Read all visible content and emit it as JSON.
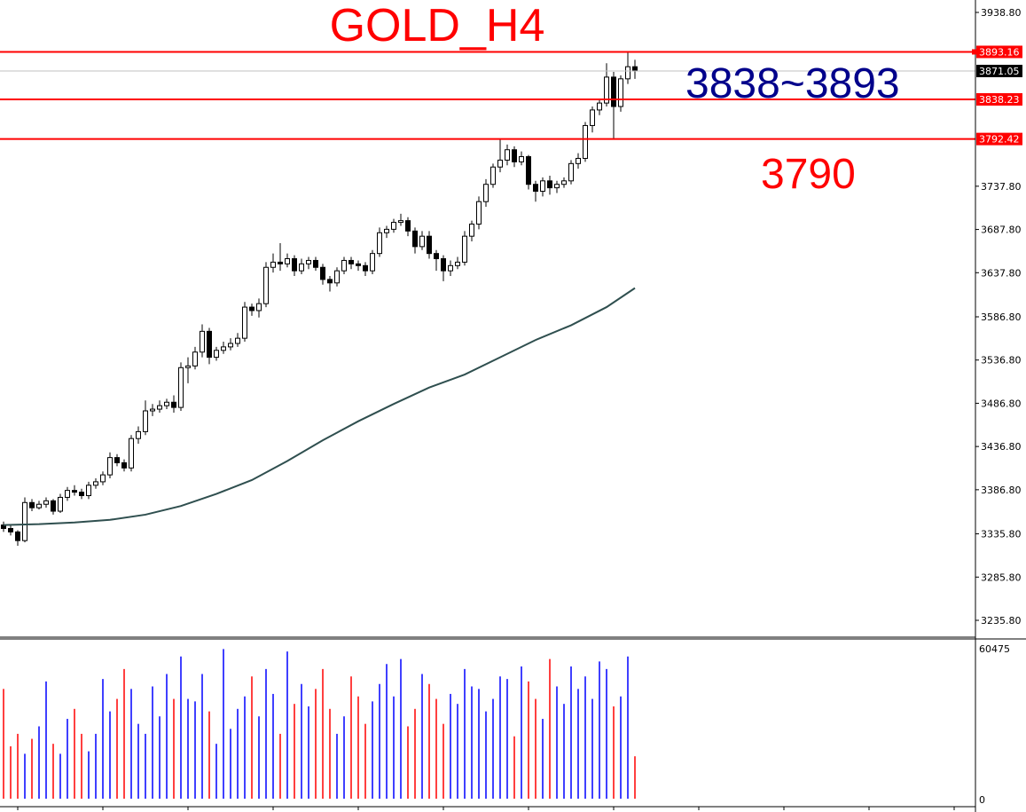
{
  "chart_data": {
    "type": "candlestick",
    "symbol_title": "GOLD_H4",
    "annotations": [
      {
        "text": "3838~3893",
        "color": "#00008B"
      },
      {
        "text": "3790",
        "color": "#FF0000"
      }
    ],
    "ylim": [
      3210,
      3960
    ],
    "price_ticks": [
      "3938.80",
      "3893.16",
      "3838.23",
      "3792.42",
      "3737.80",
      "3687.80",
      "3637.80",
      "3586.80",
      "3536.80",
      "3486.80",
      "3436.80",
      "3386.80",
      "3335.80",
      "3285.80",
      "3235.80"
    ],
    "tick_values": [
      3938.8,
      3737.8,
      3687.8,
      3637.8,
      3586.8,
      3536.8,
      3486.8,
      3436.8,
      3386.8,
      3335.8,
      3285.8,
      3235.8
    ],
    "levels": [
      {
        "label": "3893.16",
        "value": 3893.16,
        "color": "#FF0000"
      },
      {
        "label": "3838.23",
        "value": 3838.23,
        "color": "#FF0000"
      },
      {
        "label": "3792.42",
        "value": 3792.42,
        "color": "#FF0000"
      }
    ],
    "bid": {
      "label": "3871.05",
      "value": 3871.05,
      "color": "#C0C0C0"
    },
    "grid": false,
    "up_color": "#0000FF",
    "down_color": "#FF0000",
    "ma_color": "#2F4F4F",
    "open": [
      3346,
      3342,
      3338,
      3328,
      3372,
      3366,
      3370,
      3374,
      3362,
      3378,
      3386,
      3384,
      3380,
      3392,
      3396,
      3404,
      3424,
      3418,
      3412,
      3446,
      3454,
      3478,
      3480,
      3484,
      3488,
      3482,
      3528,
      3530,
      3546,
      3570,
      3540,
      3548,
      3552,
      3556,
      3562,
      3598,
      3594,
      3602,
      3644,
      3650,
      3648,
      3654,
      3640,
      3648,
      3652,
      3644,
      3630,
      3626,
      3640,
      3652,
      3648,
      3646,
      3640,
      3660,
      3684,
      3688,
      3696,
      3698,
      3686,
      3668,
      3680,
      3660,
      3654,
      3640,
      3646,
      3650,
      3680,
      3694,
      3720,
      3740,
      3760,
      3768,
      3780,
      3766,
      3772,
      3740,
      3732,
      3744,
      3736,
      3740,
      3744,
      3764,
      3770,
      3808,
      3826,
      3834,
      3864,
      3830,
      3862,
      3876
    ],
    "high": [
      3350,
      3346,
      3340,
      3378,
      3376,
      3374,
      3378,
      3376,
      3382,
      3390,
      3392,
      3388,
      3396,
      3400,
      3408,
      3430,
      3428,
      3422,
      3450,
      3460,
      3490,
      3486,
      3490,
      3492,
      3496,
      3534,
      3540,
      3552,
      3578,
      3574,
      3552,
      3558,
      3562,
      3568,
      3604,
      3602,
      3608,
      3650,
      3660,
      3672,
      3660,
      3658,
      3654,
      3656,
      3656,
      3648,
      3634,
      3644,
      3656,
      3656,
      3652,
      3650,
      3664,
      3690,
      3692,
      3700,
      3706,
      3702,
      3690,
      3686,
      3686,
      3664,
      3658,
      3652,
      3656,
      3686,
      3698,
      3726,
      3746,
      3764,
      3792,
      3786,
      3784,
      3778,
      3774,
      3744,
      3748,
      3750,
      3744,
      3748,
      3768,
      3776,
      3812,
      3830,
      3838,
      3880,
      3870,
      3866,
      3893,
      3884
    ],
    "low": [
      3338,
      3334,
      3322,
      3326,
      3362,
      3364,
      3366,
      3358,
      3360,
      3374,
      3380,
      3376,
      3376,
      3388,
      3392,
      3400,
      3414,
      3408,
      3408,
      3440,
      3450,
      3472,
      3476,
      3480,
      3476,
      3478,
      3510,
      3526,
      3540,
      3532,
      3536,
      3544,
      3548,
      3552,
      3558,
      3588,
      3586,
      3598,
      3638,
      3640,
      3644,
      3634,
      3636,
      3642,
      3640,
      3624,
      3616,
      3622,
      3636,
      3642,
      3640,
      3634,
      3636,
      3656,
      3678,
      3684,
      3692,
      3680,
      3660,
      3664,
      3654,
      3640,
      3628,
      3634,
      3642,
      3646,
      3674,
      3688,
      3714,
      3736,
      3754,
      3762,
      3760,
      3762,
      3734,
      3720,
      3726,
      3728,
      3730,
      3736,
      3740,
      3758,
      3766,
      3800,
      3820,
      3830,
      3792,
      3824,
      3856,
      3862
    ],
    "close": [
      3342,
      3338,
      3328,
      3372,
      3366,
      3370,
      3374,
      3362,
      3378,
      3386,
      3384,
      3380,
      3392,
      3396,
      3404,
      3424,
      3418,
      3412,
      3446,
      3454,
      3478,
      3480,
      3484,
      3488,
      3482,
      3528,
      3530,
      3546,
      3570,
      3540,
      3548,
      3552,
      3556,
      3562,
      3598,
      3594,
      3602,
      3644,
      3650,
      3648,
      3654,
      3640,
      3648,
      3652,
      3644,
      3630,
      3626,
      3640,
      3652,
      3648,
      3646,
      3640,
      3660,
      3684,
      3688,
      3696,
      3698,
      3686,
      3668,
      3680,
      3660,
      3654,
      3640,
      3646,
      3650,
      3680,
      3694,
      3720,
      3740,
      3760,
      3768,
      3780,
      3766,
      3772,
      3740,
      3732,
      3744,
      3736,
      3740,
      3744,
      3764,
      3770,
      3808,
      3826,
      3834,
      3864,
      3830,
      3862,
      3876,
      3871.05
    ],
    "ma_points": [
      {
        "bar": 0,
        "value": 3346
      },
      {
        "bar": 5,
        "value": 3347
      },
      {
        "bar": 10,
        "value": 3349
      },
      {
        "bar": 15,
        "value": 3352
      },
      {
        "bar": 20,
        "value": 3358
      },
      {
        "bar": 25,
        "value": 3368
      },
      {
        "bar": 30,
        "value": 3382
      },
      {
        "bar": 35,
        "value": 3398
      },
      {
        "bar": 40,
        "value": 3420
      },
      {
        "bar": 45,
        "value": 3444
      },
      {
        "bar": 50,
        "value": 3466
      },
      {
        "bar": 55,
        "value": 3486
      },
      {
        "bar": 60,
        "value": 3505
      },
      {
        "bar": 65,
        "value": 3520
      },
      {
        "bar": 70,
        "value": 3540
      },
      {
        "bar": 75,
        "value": 3560
      },
      {
        "bar": 80,
        "value": 3577
      },
      {
        "bar": 85,
        "value": 3598
      },
      {
        "bar": 89,
        "value": 3620
      }
    ],
    "volume": {
      "max_label": "60475",
      "zero_label": "0",
      "max": 60475,
      "values": [
        44000,
        21000,
        26000,
        18000,
        24000,
        29000,
        47000,
        22000,
        18000,
        32000,
        36000,
        26000,
        19000,
        26000,
        48000,
        35000,
        40000,
        52000,
        44000,
        30000,
        26000,
        45000,
        33000,
        50000,
        40000,
        57000,
        40000,
        39000,
        50000,
        35000,
        22000,
        60000,
        28000,
        36000,
        41000,
        49000,
        33000,
        52000,
        42000,
        26000,
        59000,
        38000,
        46000,
        37000,
        44000,
        52000,
        36000,
        26000,
        33000,
        49000,
        41000,
        30000,
        39000,
        46000,
        54000,
        41000,
        56000,
        29000,
        36000,
        50000,
        46000,
        40000,
        30000,
        42000,
        38000,
        52000,
        45000,
        44000,
        35000,
        40000,
        49000,
        48000,
        25000,
        53000,
        47000,
        40000,
        32000,
        56000,
        45000,
        38000,
        53000,
        44000,
        49000,
        40000,
        55000,
        52000,
        37000,
        41000,
        57000,
        17000
      ]
    }
  }
}
